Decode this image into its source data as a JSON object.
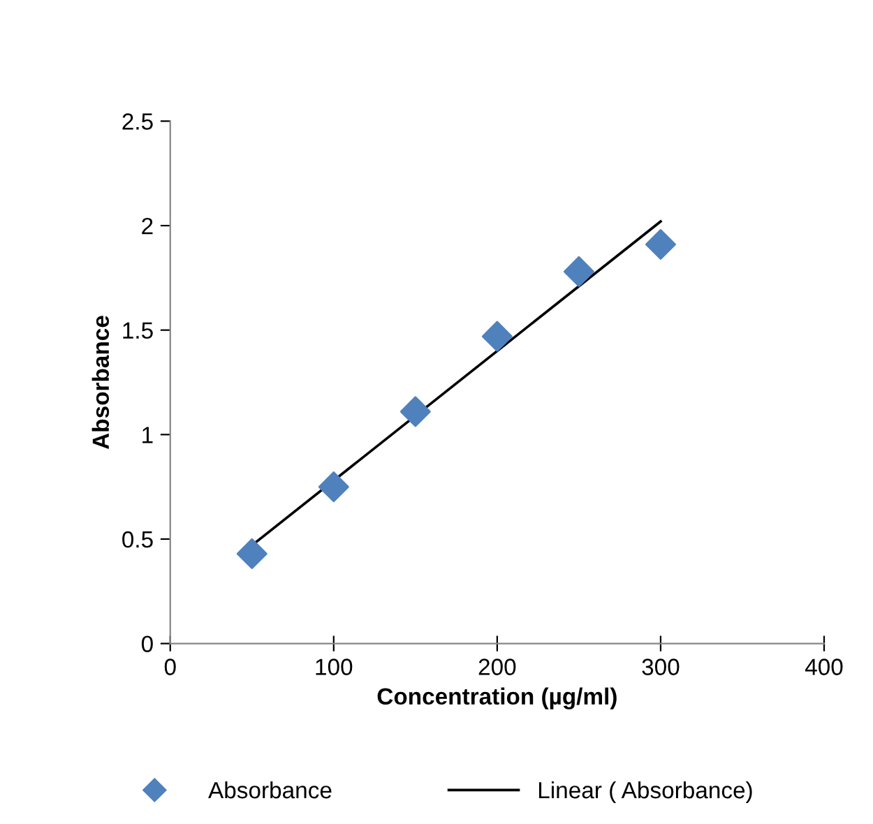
{
  "chart_data": {
    "type": "scatter",
    "xlabel": "Concentration (µg/ml)",
    "ylabel": "Absorbance",
    "series": [
      {
        "name": "Absorbance",
        "color": "#4f81bd",
        "marker": "diamond",
        "x": [
          50,
          100,
          150,
          200,
          250,
          300
        ],
        "values": [
          0.43,
          0.75,
          1.11,
          1.47,
          1.78,
          1.91
        ]
      },
      {
        "name": "Linear ( Absorbance)",
        "type": "line",
        "color": "#000000",
        "marker": "none",
        "line_style": "solid",
        "x": [
          50,
          300
        ],
        "values": [
          0.47,
          2.02
        ]
      }
    ],
    "xlim": [
      0,
      400
    ],
    "xticks": [
      0,
      100,
      200,
      300,
      400
    ],
    "ylim": [
      0,
      2.5
    ],
    "yticks": [
      0,
      0.5,
      1,
      1.5,
      2,
      2.5
    ],
    "grid": false,
    "legend": "bottom"
  }
}
